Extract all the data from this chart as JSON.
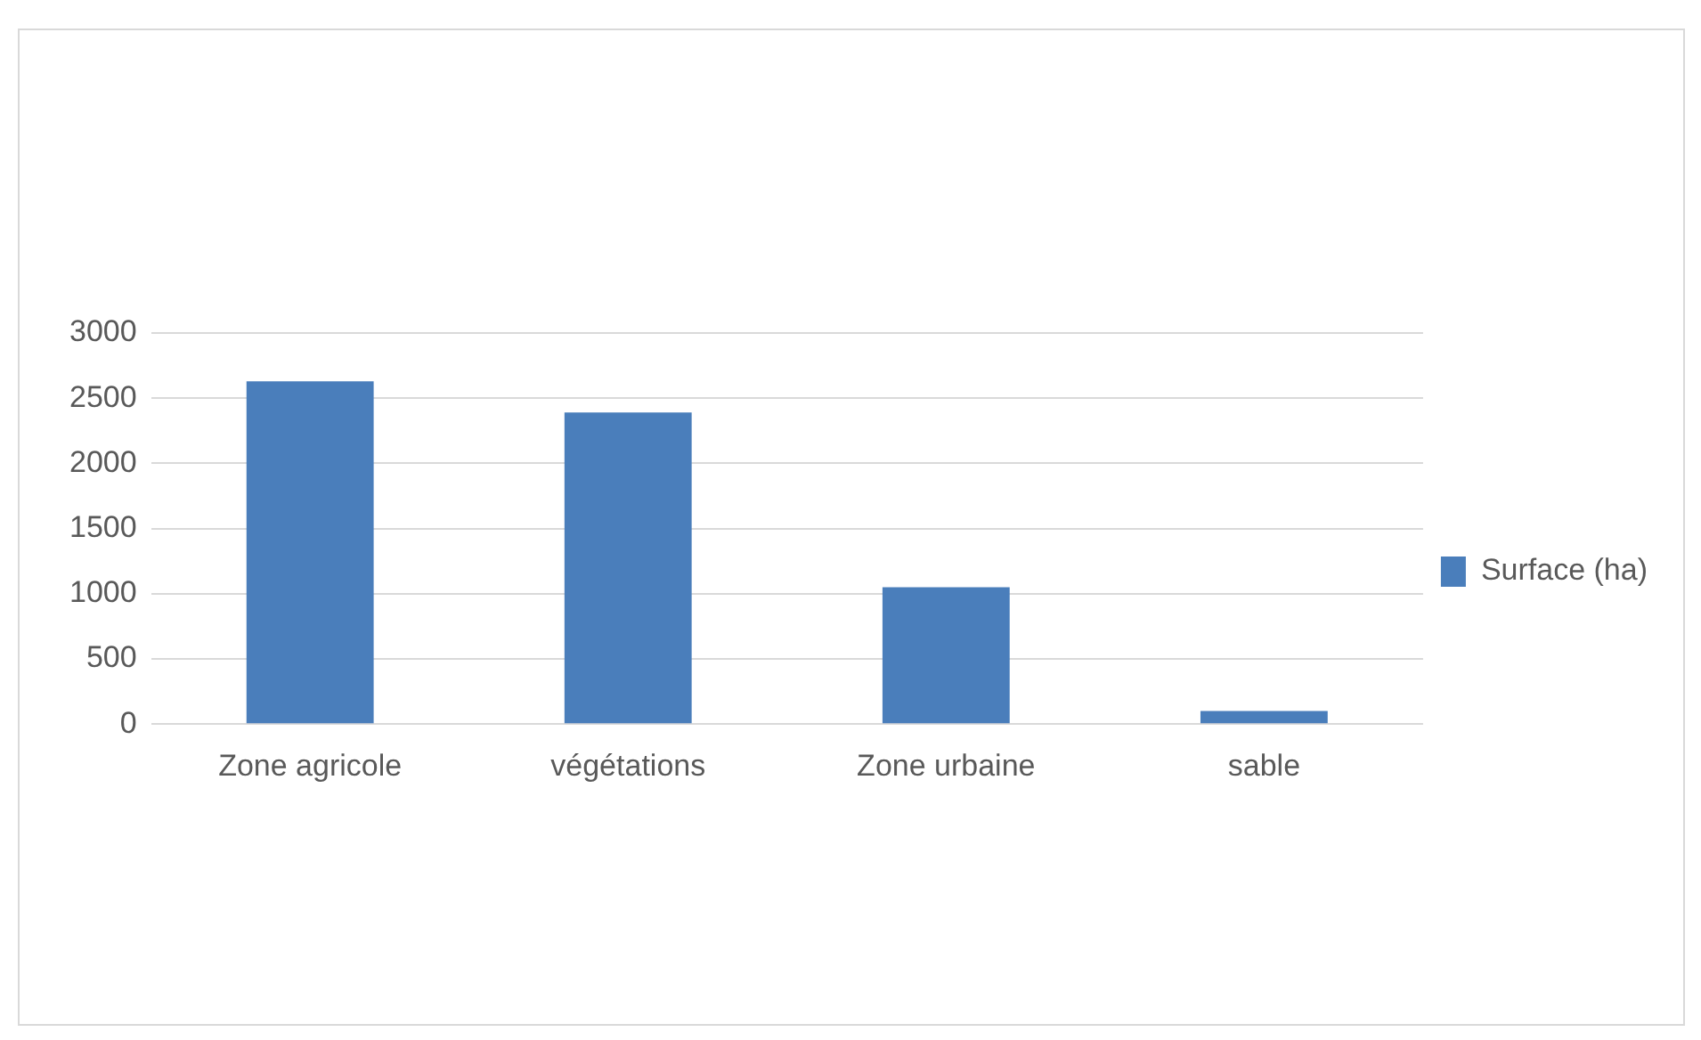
{
  "chart_data": {
    "type": "bar",
    "categories": [
      "Zone agricole",
      "végétations",
      "Zone urbaine",
      "sable"
    ],
    "series": [
      {
        "name": "Surface (ha)",
        "color": "#4a7ebb",
        "values": [
          2630,
          2390,
          1050,
          100
        ]
      }
    ],
    "ylim": [
      0,
      3000
    ],
    "yticks": [
      0,
      500,
      1000,
      1500,
      2000,
      2500,
      3000
    ],
    "grid": "y",
    "legend": "right"
  }
}
